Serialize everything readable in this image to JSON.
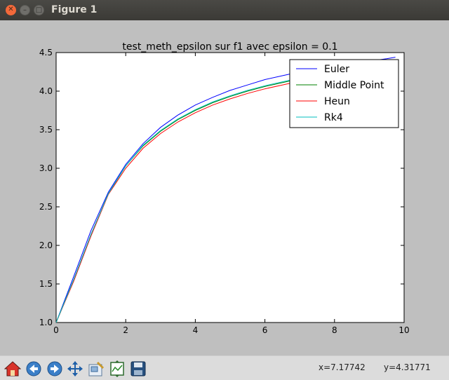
{
  "window": {
    "title": "Figure 1"
  },
  "toolbar": {
    "buttons": [
      "home-icon",
      "back-icon",
      "forward-icon",
      "pan-icon",
      "zoom-icon",
      "subplots-icon",
      "save-icon"
    ],
    "coord_x": "x=7.17742",
    "coord_y": "y=4.31771"
  },
  "colors": {
    "Euler": "#0000ff",
    "Middle Point": "#008000",
    "Heun": "#ff0000",
    "Rk4": "#00bfbf"
  },
  "chart_data": {
    "type": "line",
    "title": "test_meth_epsilon sur f1 avec epsilon = 0.1",
    "xlabel": "",
    "ylabel": "",
    "xlim": [
      0,
      10
    ],
    "ylim": [
      1.0,
      4.5
    ],
    "xticks": [
      "0",
      "2",
      "4",
      "6",
      "8",
      "10"
    ],
    "yticks": [
      "1.0",
      "1.5",
      "2.0",
      "2.5",
      "3.0",
      "3.5",
      "4.0",
      "4.5"
    ],
    "grid": false,
    "legend": "top-right",
    "series": [
      {
        "name": "Euler",
        "x": [
          0,
          0.5,
          1.0,
          1.5,
          2.0,
          2.5,
          3.0,
          3.5,
          4.0,
          4.5,
          5.0,
          5.5,
          6.0,
          6.5,
          7.0,
          7.5,
          8.0,
          8.5,
          9.0,
          9.5,
          9.75
        ],
        "y": [
          1.0,
          1.59,
          2.19,
          2.69,
          3.05,
          3.32,
          3.53,
          3.69,
          3.82,
          3.92,
          4.01,
          4.08,
          4.15,
          4.2,
          4.25,
          4.29,
          4.33,
          4.36,
          4.39,
          4.42,
          4.44
        ]
      },
      {
        "name": "Middle Point",
        "x": [
          0,
          0.5,
          1.0,
          1.5,
          2.0,
          2.5,
          3.0,
          3.5,
          4.0,
          4.5,
          5.0,
          5.5,
          6.0,
          6.5,
          7.0,
          7.5,
          8.0,
          8.5,
          9.0,
          9.5,
          9.75
        ],
        "y": [
          1.0,
          1.55,
          2.14,
          2.67,
          3.03,
          3.29,
          3.48,
          3.63,
          3.75,
          3.85,
          3.93,
          4.0,
          4.06,
          4.11,
          4.16,
          4.2,
          4.24,
          4.27,
          4.3,
          4.33,
          4.34
        ]
      },
      {
        "name": "Heun",
        "x": [
          0,
          0.5,
          1.0,
          1.5,
          2.0,
          2.5,
          3.0,
          3.5,
          4.0,
          4.5,
          5.0,
          5.5,
          6.0,
          6.5,
          7.0,
          7.5,
          8.0,
          8.5,
          9.0,
          9.5,
          9.75
        ],
        "y": [
          1.0,
          1.53,
          2.12,
          2.66,
          3.0,
          3.26,
          3.45,
          3.6,
          3.72,
          3.82,
          3.9,
          3.97,
          4.03,
          4.08,
          4.13,
          4.17,
          4.21,
          4.24,
          4.27,
          4.3,
          4.31
        ]
      },
      {
        "name": "Rk4",
        "x": [
          0,
          0.5,
          1.0,
          1.5,
          2.0,
          2.5,
          3.0,
          3.5,
          4.0,
          4.5,
          5.0,
          5.5,
          6.0,
          6.5,
          7.0,
          7.5,
          8.0,
          8.5,
          9.0,
          9.5,
          9.75
        ],
        "y": [
          1.0,
          1.55,
          2.14,
          2.67,
          3.03,
          3.3,
          3.49,
          3.64,
          3.76,
          3.86,
          3.94,
          4.01,
          4.07,
          4.12,
          4.17,
          4.21,
          4.25,
          4.28,
          4.31,
          4.34,
          4.35
        ]
      }
    ]
  }
}
